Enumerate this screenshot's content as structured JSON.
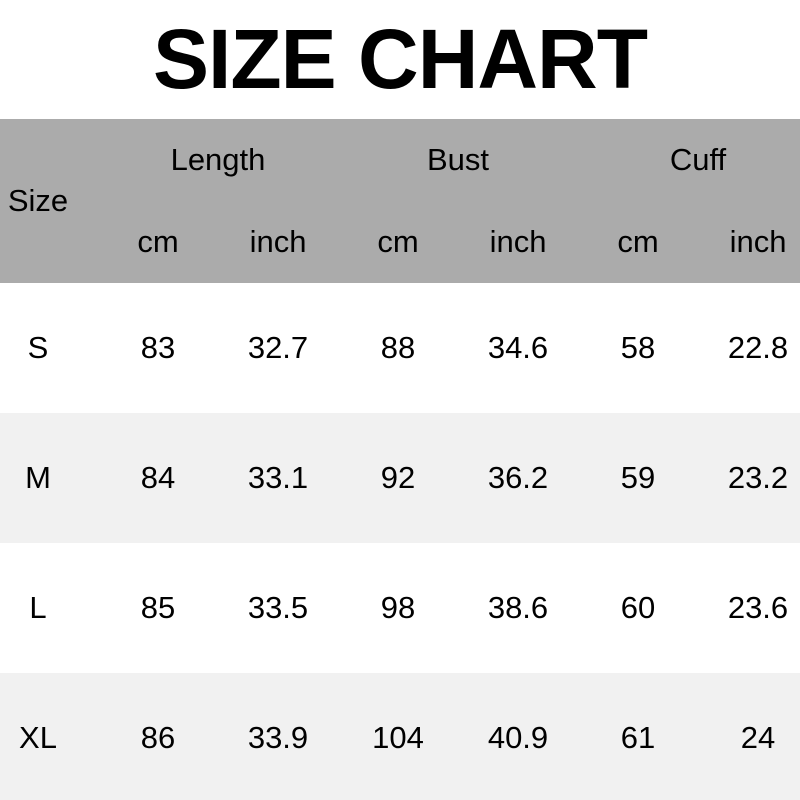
{
  "page": {
    "title": "SIZE CHART"
  },
  "colors": {
    "header_bg": "#ababab",
    "row_bg": "#ffffff",
    "row_alt_bg": "#f1f1f1",
    "text": "#000000"
  },
  "table": {
    "size_header": "Size",
    "groups": [
      {
        "label": "Length"
      },
      {
        "label": "Bust"
      },
      {
        "label": "Cuff"
      }
    ],
    "unit_headers": [
      "cm",
      "inch",
      "cm",
      "inch",
      "cm",
      "inch"
    ],
    "rows": [
      {
        "size": "S",
        "values": [
          "83",
          "32.7",
          "88",
          "34.6",
          "58",
          "22.8"
        ]
      },
      {
        "size": "M",
        "values": [
          "84",
          "33.1",
          "92",
          "36.2",
          "59",
          "23.2"
        ]
      },
      {
        "size": "L",
        "values": [
          "85",
          "33.5",
          "98",
          "38.6",
          "60",
          "23.6"
        ]
      },
      {
        "size": "XL",
        "values": [
          "86",
          "33.9",
          "104",
          "40.9",
          "61",
          "24"
        ]
      }
    ]
  },
  "chart_data": {
    "type": "table",
    "title": "SIZE CHART",
    "columns": [
      "Size",
      "Length cm",
      "Length inch",
      "Bust cm",
      "Bust inch",
      "Cuff cm",
      "Cuff inch"
    ],
    "rows": [
      [
        "S",
        83,
        32.7,
        88,
        34.6,
        58,
        22.8
      ],
      [
        "M",
        84,
        33.1,
        92,
        36.2,
        59,
        23.2
      ],
      [
        "L",
        85,
        33.5,
        98,
        38.6,
        60,
        23.6
      ],
      [
        "XL",
        86,
        33.9,
        104,
        40.9,
        61,
        24
      ]
    ]
  }
}
